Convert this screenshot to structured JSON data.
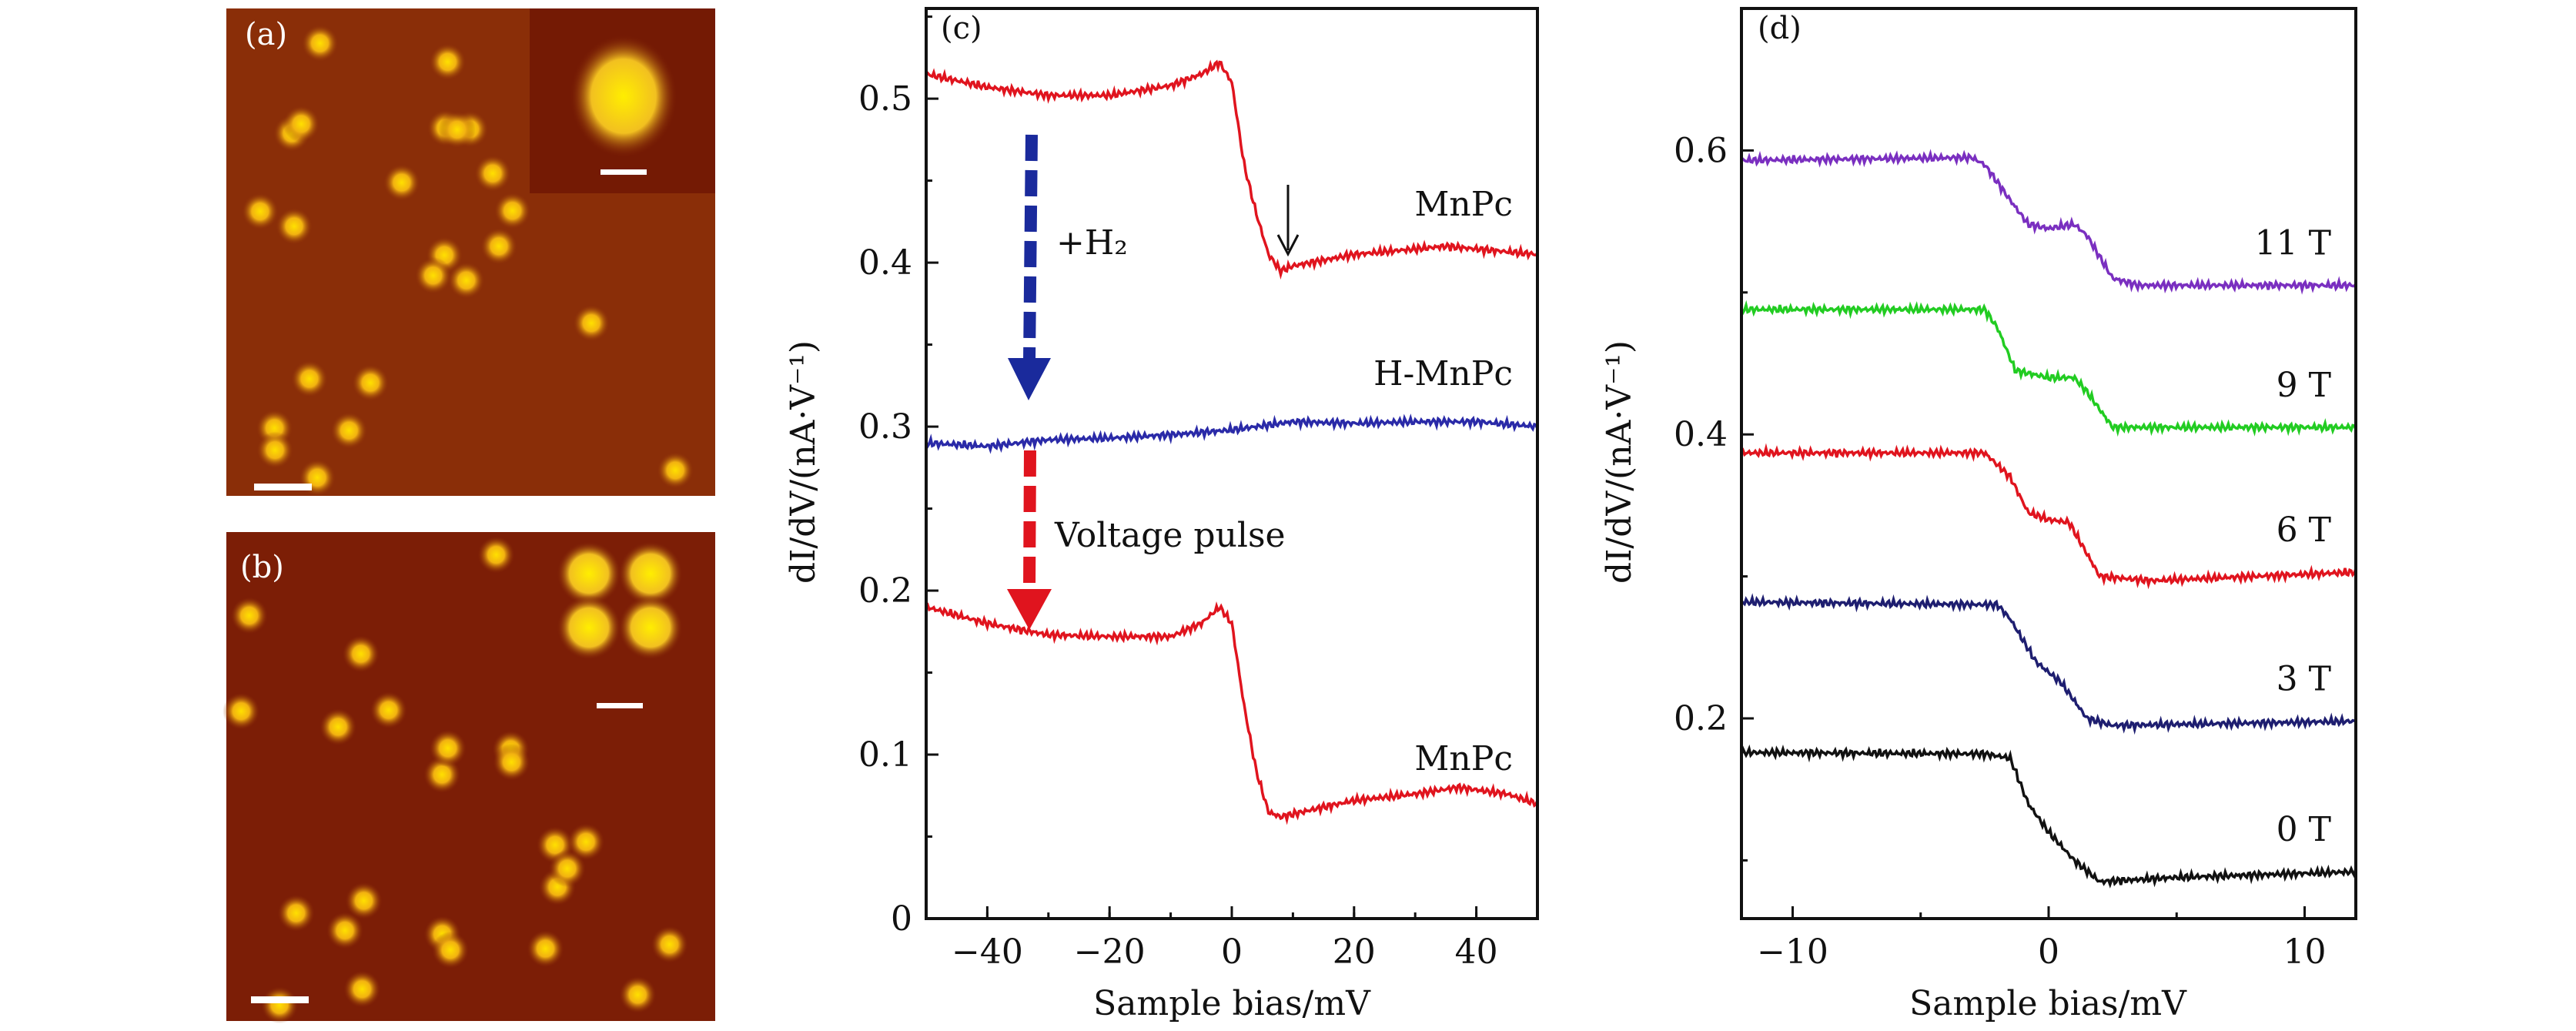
{
  "images": [
    {
      "label": "(a)"
    },
    {
      "label": "(b)"
    }
  ],
  "chart_data": [
    {
      "type": "line",
      "panel_label": "(c)",
      "xlabel": "Sample bias/mV",
      "ylabel": "dI/dV/(nA·V⁻¹)",
      "xlim": [
        -50,
        50
      ],
      "ylim": [
        0,
        0.555
      ],
      "xticks": [
        -40,
        -20,
        0,
        20,
        40
      ],
      "xtick_labels": [
        "−40",
        "−20",
        "0",
        "20",
        "40"
      ],
      "yticks": [
        0,
        0.1,
        0.2,
        0.3,
        0.4,
        0.5
      ],
      "ytick_labels": [
        "0",
        "0.1",
        "0.2",
        "0.3",
        "0.4",
        "0.5"
      ],
      "grid": false,
      "series": [
        {
          "name": "MnPc",
          "color": "#e0141e",
          "x": [
            -50,
            -40,
            -30,
            -20,
            -10,
            -5,
            -2,
            0,
            2,
            4,
            6,
            8,
            10,
            20,
            35,
            50
          ],
          "y": [
            0.515,
            0.507,
            0.502,
            0.502,
            0.508,
            0.515,
            0.522,
            0.51,
            0.46,
            0.43,
            0.405,
            0.395,
            0.398,
            0.405,
            0.41,
            0.405
          ]
        },
        {
          "name": "H-MnPc",
          "color": "#2a2aa8",
          "x": [
            -50,
            -40,
            -30,
            -20,
            -10,
            0,
            10,
            20,
            30,
            40,
            50
          ],
          "y": [
            0.29,
            0.288,
            0.292,
            0.293,
            0.295,
            0.298,
            0.303,
            0.302,
            0.303,
            0.303,
            0.3
          ]
        },
        {
          "name": "MnPc",
          "color": "#e0141e",
          "x": [
            -50,
            -40,
            -30,
            -20,
            -10,
            -5,
            -2,
            0,
            2,
            4,
            6,
            8,
            15,
            20,
            30,
            37,
            45,
            50
          ],
          "y": [
            0.19,
            0.18,
            0.173,
            0.172,
            0.172,
            0.18,
            0.19,
            0.18,
            0.13,
            0.09,
            0.065,
            0.062,
            0.068,
            0.072,
            0.076,
            0.08,
            0.076,
            0.07
          ]
        }
      ],
      "annotations": [
        {
          "text": "+H₂",
          "arrow_color": "#1a2a9c"
        },
        {
          "text": "Voltage pulse",
          "arrow_color": "#e0141e"
        }
      ]
    },
    {
      "type": "line",
      "panel_label": "(d)",
      "xlabel": "Sample bias/mV",
      "ylabel": "dI/dV/(nA·V⁻¹)",
      "xlim": [
        -12,
        12
      ],
      "ylim": [
        0.059,
        0.7
      ],
      "xticks": [
        -10,
        0,
        10
      ],
      "xtick_labels": [
        "−10",
        "0",
        "10"
      ],
      "yticks": [
        0.2,
        0.4,
        0.6
      ],
      "ytick_labels": [
        "0.2",
        "0.4",
        "0.6"
      ],
      "grid": false,
      "series": [
        {
          "name": "11 T",
          "color": "#7a2fc0",
          "x": [
            -12,
            -3,
            -2.5,
            -1.5,
            -0.8,
            0,
            1,
            1.5,
            2.5,
            3.5,
            12
          ],
          "y": [
            0.593,
            0.595,
            0.59,
            0.565,
            0.548,
            0.545,
            0.548,
            0.54,
            0.51,
            0.505,
            0.505
          ]
        },
        {
          "name": "9 T",
          "color": "#22cc22",
          "x": [
            -12,
            -2.5,
            -2,
            -1.3,
            0,
            1,
            1.5,
            2.5,
            12
          ],
          "y": [
            0.488,
            0.488,
            0.475,
            0.445,
            0.44,
            0.44,
            0.43,
            0.405,
            0.405
          ]
        },
        {
          "name": "6 T",
          "color": "#e0141e",
          "x": [
            -12,
            -2.5,
            -1.5,
            -0.8,
            0,
            0.8,
            2,
            4,
            12
          ],
          "y": [
            0.387,
            0.387,
            0.37,
            0.345,
            0.34,
            0.338,
            0.3,
            0.297,
            0.303
          ]
        },
        {
          "name": "3 T",
          "color": "#1e1e70",
          "x": [
            -12,
            -2,
            -1.5,
            -0.5,
            0.5,
            1.5,
            2.5,
            12
          ],
          "y": [
            0.282,
            0.28,
            0.27,
            0.24,
            0.225,
            0.2,
            0.195,
            0.198
          ]
        },
        {
          "name": "0 T",
          "color": "#111111",
          "x": [
            -12,
            -2.5,
            -1.5,
            -0.8,
            0,
            1,
            2,
            5,
            12
          ],
          "y": [
            0.176,
            0.175,
            0.172,
            0.14,
            0.12,
            0.1,
            0.085,
            0.088,
            0.092
          ]
        }
      ]
    }
  ]
}
